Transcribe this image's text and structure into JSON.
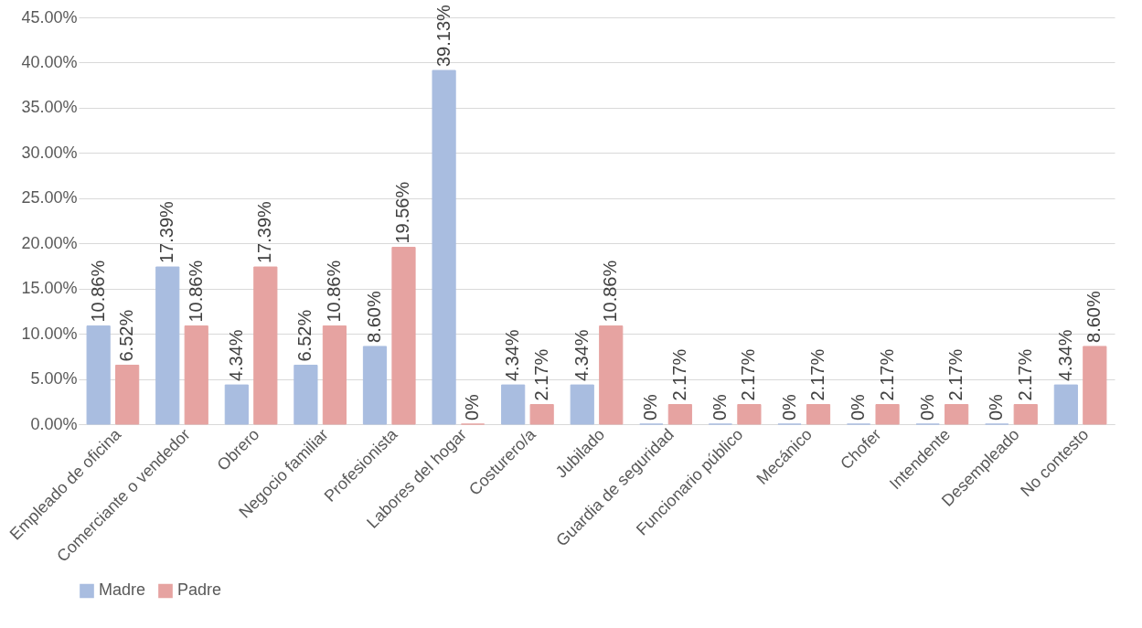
{
  "chart_data": {
    "type": "bar",
    "categories": [
      "Empleado de oficina",
      "Comerciante o vendedor",
      "Obrero",
      "Negocio familiar",
      "Profesionista",
      "Labores del hogar",
      "Costurero/a",
      "Jubilado",
      "Guardia de seguridad",
      "Funcionario público",
      "Mecánico",
      "Chofer",
      "Intendente",
      "Desempleado",
      "No contesto"
    ],
    "series": [
      {
        "name": "Madre",
        "color": "#a9bde0",
        "values": [
          10.86,
          17.39,
          4.34,
          6.52,
          8.6,
          39.13,
          4.34,
          4.34,
          0,
          0,
          0,
          0,
          0,
          0,
          4.34
        ],
        "value_labels": [
          "10.86%",
          "17.39%",
          "4.34%",
          "6.52%",
          "8.60%",
          "39.13%",
          "4.34%",
          "4.34%",
          "0%",
          "0%",
          "0%",
          "0%",
          "0%",
          "0%",
          "4.34%"
        ]
      },
      {
        "name": "Padre",
        "color": "#e6a3a1",
        "values": [
          6.52,
          10.86,
          17.39,
          10.86,
          19.56,
          0,
          2.17,
          10.86,
          2.17,
          2.17,
          2.17,
          2.17,
          2.17,
          2.17,
          8.6
        ],
        "value_labels": [
          "6.52%",
          "10.86%",
          "17.39%",
          "10.86%",
          "19.56%",
          "0%",
          "2.17%",
          "10.86%",
          "2.17%",
          "2.17%",
          "2.17%",
          "2.17%",
          "2.17%",
          "2.17%",
          "8.60%"
        ]
      }
    ],
    "ylim": [
      0,
      45
    ],
    "yticks": [
      {
        "value": 0,
        "label": "0.00%"
      },
      {
        "value": 5,
        "label": "5.00%"
      },
      {
        "value": 10,
        "label": "10.00%"
      },
      {
        "value": 15,
        "label": "15.00%"
      },
      {
        "value": 20,
        "label": "20.00%"
      },
      {
        "value": 25,
        "label": "25.00%"
      },
      {
        "value": 30,
        "label": "30.00%"
      },
      {
        "value": 35,
        "label": "35.00%"
      },
      {
        "value": 40,
        "label": "40.00%"
      },
      {
        "value": 45,
        "label": "45.00%"
      }
    ],
    "grid": "y",
    "legend": "bottom"
  }
}
